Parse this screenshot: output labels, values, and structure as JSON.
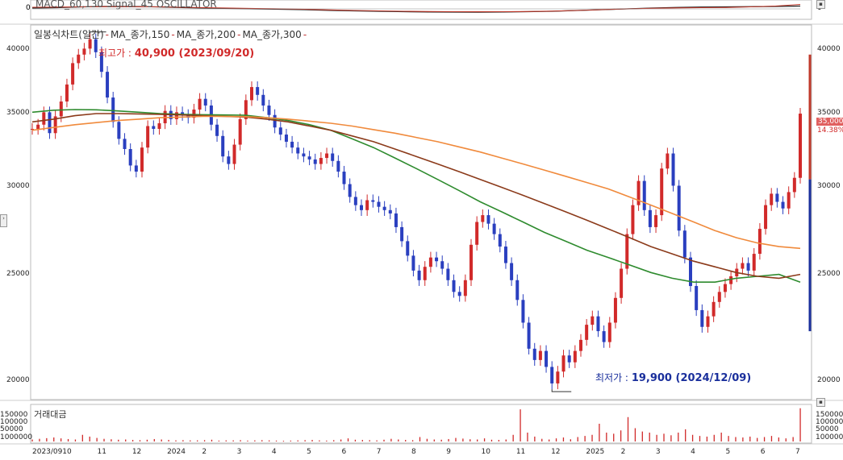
{
  "macd_panel": {
    "label": "MACD_60,130 Signal_45 OSCILLATOR",
    "zero_label": "0"
  },
  "legend": {
    "items": [
      "일봉식차트(일간)",
      "MA_종가,150",
      "MA_종가,200",
      "MA_종가,300"
    ]
  },
  "annotations": {
    "high_label": "최고가 :",
    "high_value": "40,900 (2023/09/20)",
    "low_label": "최저가 :",
    "low_value": "19,900 (2024/12/09)"
  },
  "last_price": {
    "price": "35,000",
    "change": "14.38%"
  },
  "volume_panel": {
    "title": "거래대금",
    "ticks": [
      "150000",
      "100000",
      "50000",
      "1000000"
    ]
  },
  "colors": {
    "up": "#d12a2a",
    "down": "#2a3fbf",
    "ma150": "#2e8b2e",
    "ma200": "#8b3a1a",
    "ma300": "#f08a3c",
    "macd": "#222222",
    "signal": "#c0392b"
  },
  "chart_data": {
    "type": "line",
    "title": "",
    "y_ticks": [
      40000,
      35000,
      30000,
      25000,
      20000
    ],
    "ylim": [
      19500,
      41500
    ],
    "log_scale": true,
    "x_ticks": [
      "2023/09",
      "10",
      "11",
      "12",
      "2024",
      "2",
      "3",
      "4",
      "5",
      "6",
      "7",
      "8",
      "9",
      "10",
      "11",
      "12",
      "2025",
      "2",
      "3",
      "4",
      "5",
      "6",
      "7"
    ],
    "grid": false,
    "price_closes": [
      33900,
      34200,
      35100,
      33600,
      34800,
      35900,
      37200,
      38900,
      39600,
      40100,
      40900,
      39800,
      38200,
      36200,
      34400,
      33200,
      32500,
      31400,
      31000,
      32600,
      34100,
      33900,
      34300,
      35200,
      34600,
      35100,
      34900,
      34700,
      35300,
      36100,
      35600,
      34200,
      33400,
      32000,
      31500,
      32800,
      34600,
      36000,
      37000,
      36400,
      35600,
      34900,
      34000,
      33500,
      33000,
      32600,
      32200,
      32000,
      31800,
      31500,
      31900,
      32200,
      31700,
      31000,
      30200,
      29400,
      28900,
      28600,
      29200,
      29100,
      28800,
      28600,
      28400,
      27600,
      26800,
      26000,
      25200,
      24700,
      25400,
      25900,
      25700,
      25300,
      24700,
      24100,
      23900,
      24700,
      26600,
      27900,
      28300,
      27800,
      27200,
      26500,
      25600,
      24700,
      23700,
      22600,
      21400,
      20900,
      21300,
      20600,
      19900,
      20400,
      21100,
      20800,
      21300,
      21800,
      22500,
      22900,
      22200,
      21700,
      22600,
      23800,
      25300,
      27200,
      28900,
      30400,
      28600,
      27600,
      28300,
      31200,
      32200,
      30100,
      27400,
      25900,
      24400,
      23200,
      22400,
      22900,
      23600,
      24100,
      24500,
      24900,
      25300,
      25600,
      25200,
      26100,
      27500,
      28900,
      29600,
      29100,
      28700,
      29700,
      30600,
      35000
    ],
    "series": [
      {
        "name": "MA_종가,150",
        "values": [
          35100,
          35250,
          35300,
          35280,
          35200,
          35100,
          35000,
          34950,
          34920,
          34900,
          34880,
          34700,
          34500,
          34200,
          33800,
          33200,
          32600,
          31900,
          31200,
          30500,
          29800,
          29100,
          28500,
          27900,
          27300,
          26800,
          26300,
          25900,
          25500,
          25100,
          24800,
          24600,
          24600,
          24800,
          24900,
          25000,
          24600
        ]
      },
      {
        "name": "MA_종가,200",
        "values": [
          34400,
          34600,
          34850,
          35000,
          35000,
          34980,
          34950,
          34900,
          34850,
          34800,
          34750,
          34600,
          34400,
          34100,
          33800,
          33400,
          33000,
          32500,
          32000,
          31500,
          31000,
          30500,
          30000,
          29500,
          29000,
          28500,
          28000,
          27500,
          27000,
          26500,
          26100,
          25700,
          25400,
          25100,
          24900,
          24800,
          25000
        ]
      },
      {
        "name": "MA_종가,300",
        "values": [
          33800,
          34000,
          34200,
          34350,
          34500,
          34600,
          34700,
          34750,
          34800,
          34800,
          34780,
          34700,
          34600,
          34450,
          34300,
          34100,
          33850,
          33600,
          33300,
          33000,
          32650,
          32300,
          31900,
          31500,
          31100,
          30700,
          30300,
          29900,
          29400,
          28900,
          28400,
          27900,
          27400,
          27000,
          26700,
          26500,
          26400
        ]
      }
    ],
    "macd": {
      "zero": 0,
      "macd_values": [
        0.2,
        0.3,
        0.5,
        0.6,
        0.6,
        0.5,
        0.35,
        0.2,
        0.1,
        0.0,
        -0.1,
        -0.2,
        -0.35,
        -0.5,
        -0.6,
        -0.7,
        -0.75,
        -0.8,
        -0.82,
        -0.78,
        -0.7,
        -0.6,
        -0.4,
        -0.2,
        0.0,
        0.2,
        0.35,
        0.45,
        0.5,
        0.55,
        0.6,
        0.7
      ],
      "signal_values": [
        0.4,
        0.45,
        0.5,
        0.55,
        0.55,
        0.5,
        0.4,
        0.3,
        0.2,
        0.1,
        0.0,
        -0.1,
        -0.25,
        -0.4,
        -0.5,
        -0.6,
        -0.65,
        -0.7,
        -0.72,
        -0.7,
        -0.65,
        -0.55,
        -0.4,
        -0.2,
        0.0,
        0.15,
        0.25,
        0.3,
        0.35,
        0.5,
        0.7,
        1.1
      ]
    },
    "volume": {
      "ylim": [
        0,
        160000
      ],
      "values": [
        9000,
        12000,
        15000,
        18000,
        14000,
        11000,
        9000,
        30000,
        22000,
        16000,
        12000,
        10000,
        8000,
        9000,
        7000,
        6000,
        8000,
        11000,
        9000,
        7000,
        5000,
        6000,
        5000,
        5000,
        6000,
        8000,
        4000,
        5000,
        5000,
        6000,
        4000,
        5000,
        6000,
        5000,
        4000,
        3000,
        4000,
        5000,
        6000,
        7000,
        5000,
        4000,
        6000,
        9000,
        14000,
        8000,
        7000,
        6000,
        5000,
        8000,
        12000,
        9000,
        7000,
        6000,
        20000,
        12000,
        9000,
        8000,
        11000,
        16000,
        13000,
        10000,
        9000,
        14000,
        8000,
        7000,
        9000,
        30000,
        145000,
        40000,
        22000,
        12000,
        9000,
        14000,
        18000,
        10000,
        20000,
        25000,
        30000,
        80000,
        40000,
        35000,
        50000,
        110000,
        60000,
        45000,
        40000,
        30000,
        35000,
        28000,
        40000,
        55000,
        30000,
        25000,
        22000,
        30000,
        40000,
        25000,
        20000,
        18000,
        22000,
        16000,
        20000,
        25000,
        18000,
        14000,
        20000,
        150000
      ]
    }
  }
}
